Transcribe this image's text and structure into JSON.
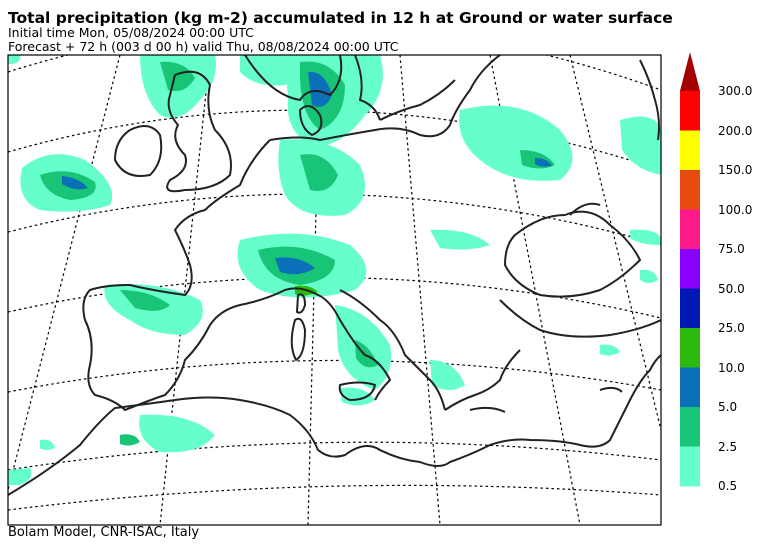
{
  "header": {
    "title": "Total precipitation (kg m-2) accumulated in  12 h at Ground or water surface",
    "initial_time": "Initial time  Mon, 05/08/2024  00:00 UTC",
    "forecast": "Forecast  +  72 h  (003 d 00 h)  valid Thu, 08/08/2024 00:00 UTC"
  },
  "footer": {
    "credit": "Bolam Model, CNR-ISAC, Italy"
  },
  "colorbar": {
    "levels": [
      "300.0",
      "200.0",
      "150.0",
      "100.0",
      "75.0",
      "50.0",
      "25.0",
      "10.0",
      "5.0",
      "2.5",
      "0.5"
    ],
    "colors": [
      "#ff0000",
      "#ffff00",
      "#e84a10",
      "#ff1a8c",
      "#8a00ff",
      "#0018b4",
      "#2cb80c",
      "#0b70b8",
      "#18c476",
      "#66ffcc"
    ],
    "overflow_color": "#a50000"
  }
}
